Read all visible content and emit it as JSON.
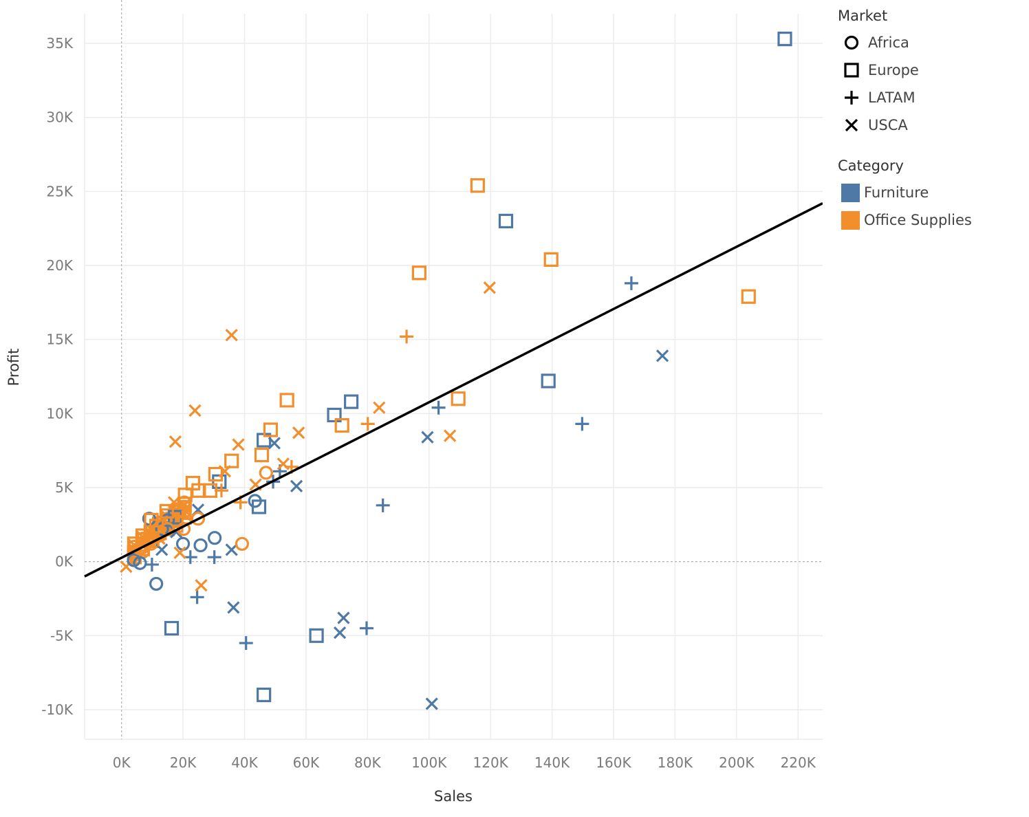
{
  "chart_data": {
    "type": "scatter",
    "xlabel": "Sales",
    "ylabel": "Profit",
    "xlim": [
      -12000,
      228000
    ],
    "ylim": [
      -12000,
      37000
    ],
    "x_ticks": [
      0,
      20000,
      40000,
      60000,
      80000,
      100000,
      120000,
      140000,
      160000,
      180000,
      200000,
      220000
    ],
    "x_tick_labels": [
      "0K",
      "20K",
      "40K",
      "60K",
      "80K",
      "100K",
      "120K",
      "140K",
      "160K",
      "180K",
      "200K",
      "220K"
    ],
    "y_ticks": [
      -10000,
      -5000,
      0,
      5000,
      10000,
      15000,
      20000,
      25000,
      30000,
      35000
    ],
    "y_tick_labels": [
      "-10K",
      "-5K",
      "0K",
      "5K",
      "10K",
      "15K",
      "20K",
      "25K",
      "30K",
      "35K"
    ],
    "grid": true,
    "zero_lines": "dashed",
    "trend_line": {
      "x": [
        -12000,
        228000
      ],
      "y": [
        -1000,
        24200
      ],
      "color": "#000000"
    },
    "legend_placement": "right",
    "legends": {
      "shape": {
        "title": "Market",
        "items": [
          {
            "label": "Africa",
            "shape": "circle"
          },
          {
            "label": "Europe",
            "shape": "square"
          },
          {
            "label": "LATAM",
            "shape": "plus"
          },
          {
            "label": "USCA",
            "shape": "cross"
          }
        ]
      },
      "color": {
        "title": "Category",
        "items": [
          {
            "label": "Furniture",
            "color": "#4e79a7"
          },
          {
            "label": "Office Supplies",
            "color": "#f28e2b"
          }
        ]
      }
    },
    "series": [
      {
        "category": "Furniture",
        "market": "Europe",
        "points": [
          [
            215700,
            35300
          ],
          [
            125000,
            23000
          ],
          [
            138800,
            12200
          ],
          [
            74700,
            10800
          ],
          [
            69200,
            9900
          ],
          [
            46300,
            8200
          ],
          [
            31800,
            5400
          ],
          [
            44700,
            3700
          ],
          [
            17400,
            3000
          ],
          [
            16300,
            -4500
          ],
          [
            63400,
            -5000
          ],
          [
            46300,
            -9000
          ]
        ]
      },
      {
        "category": "Furniture",
        "market": "LATAM",
        "points": [
          [
            165800,
            18800
          ],
          [
            103100,
            10400
          ],
          [
            149800,
            9300
          ],
          [
            85000,
            3800
          ],
          [
            51500,
            6100
          ],
          [
            49300,
            5400
          ],
          [
            22400,
            300
          ],
          [
            30200,
            300
          ],
          [
            24600,
            -2400
          ],
          [
            40500,
            -5500
          ],
          [
            79700,
            -4500
          ],
          [
            9900,
            -200
          ]
        ]
      },
      {
        "category": "Furniture",
        "market": "USCA",
        "points": [
          [
            175900,
            13900
          ],
          [
            99500,
            8400
          ],
          [
            49700,
            8000
          ],
          [
            56900,
            5100
          ],
          [
            24900,
            3500
          ],
          [
            17800,
            2000
          ],
          [
            13100,
            800
          ],
          [
            35800,
            800
          ],
          [
            36400,
            -3100
          ],
          [
            72200,
            -3800
          ],
          [
            71000,
            -4800
          ],
          [
            100900,
            -9600
          ]
        ]
      },
      {
        "category": "Furniture",
        "market": "Africa",
        "points": [
          [
            9000,
            2900
          ],
          [
            15100,
            2800
          ],
          [
            13200,
            2200
          ],
          [
            20000,
            1200
          ],
          [
            25700,
            1100
          ],
          [
            30300,
            1600
          ],
          [
            43400,
            4100
          ],
          [
            11300,
            -1500
          ],
          [
            4000,
            100
          ],
          [
            6000,
            -100
          ]
        ]
      },
      {
        "category": "Office Supplies",
        "market": "Europe",
        "points": [
          [
            115800,
            25400
          ],
          [
            96800,
            19500
          ],
          [
            139700,
            20400
          ],
          [
            203900,
            17900
          ],
          [
            109500,
            11000
          ],
          [
            53800,
            10900
          ],
          [
            48500,
            8900
          ],
          [
            71700,
            9200
          ],
          [
            45600,
            7200
          ],
          [
            35800,
            6800
          ],
          [
            30600,
            5900
          ],
          [
            23200,
            5300
          ],
          [
            20700,
            4500
          ],
          [
            28800,
            4800
          ],
          [
            25100,
            4800
          ],
          [
            14700,
            3400
          ],
          [
            18700,
            3500
          ],
          [
            9700,
            2800
          ],
          [
            11400,
            2400
          ]
        ]
      },
      {
        "category": "Office Supplies",
        "market": "USCA",
        "points": [
          [
            119700,
            18500
          ],
          [
            35800,
            15300
          ],
          [
            23900,
            10200
          ],
          [
            17500,
            8100
          ],
          [
            83800,
            10400
          ],
          [
            106800,
            8500
          ],
          [
            57600,
            8700
          ],
          [
            38000,
            7900
          ],
          [
            52600,
            6600
          ],
          [
            33600,
            6100
          ],
          [
            43600,
            5200
          ],
          [
            17100,
            4000
          ],
          [
            19000,
            600
          ],
          [
            25900,
            -1600
          ]
        ]
      },
      {
        "category": "Office Supplies",
        "market": "LATAM",
        "points": [
          [
            92700,
            15200
          ],
          [
            80100,
            9300
          ],
          [
            55300,
            6400
          ],
          [
            32500,
            4800
          ],
          [
            38700,
            4000
          ],
          [
            19800,
            3000
          ],
          [
            12000,
            1500
          ]
        ]
      },
      {
        "category": "Office Supplies",
        "market": "Africa",
        "points": [
          [
            47000,
            6000
          ],
          [
            39200,
            1200
          ],
          [
            24900,
            2900
          ],
          [
            20200,
            2200
          ],
          [
            15000,
            2200
          ],
          [
            8500,
            1300
          ],
          [
            5800,
            900
          ]
        ]
      }
    ]
  }
}
